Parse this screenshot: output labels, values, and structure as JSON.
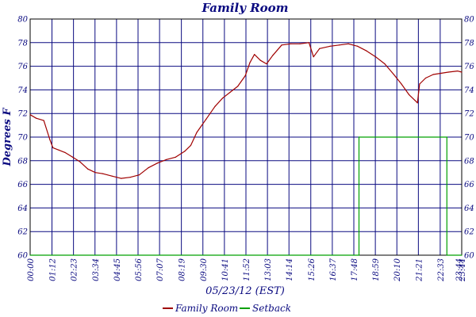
{
  "chart_data": {
    "type": "line",
    "title": "Family Room",
    "xlabel": "05/23/12 (EST)",
    "ylabel": "Degrees F",
    "ylim": [
      60,
      80
    ],
    "y_ticks": [
      60,
      62,
      64,
      66,
      68,
      70,
      72,
      74,
      76,
      78,
      80
    ],
    "x_range": [
      "00:00",
      "23:44"
    ],
    "x_tick_labels": [
      "00:00",
      "01:12",
      "02:23",
      "03:34",
      "04:45",
      "05:56",
      "07:07",
      "08:19",
      "09:30",
      "10:41",
      "11:52",
      "13:03",
      "14:14",
      "15:26",
      "16:37",
      "17:48",
      "18:59",
      "20:10",
      "21:21",
      "22:33",
      "23:44",
      "23:44"
    ],
    "grid": true,
    "legend_position": "bottom",
    "series": [
      {
        "name": "Family Room",
        "color": "#a00000",
        "x": [
          "00:00",
          "00:20",
          "00:45",
          "01:05",
          "01:15",
          "01:35",
          "01:55",
          "02:20",
          "02:45",
          "03:10",
          "03:35",
          "04:00",
          "04:30",
          "05:00",
          "05:30",
          "06:00",
          "06:30",
          "07:00",
          "07:30",
          "08:00",
          "08:30",
          "08:50",
          "09:10",
          "09:40",
          "10:10",
          "10:35",
          "11:00",
          "11:25",
          "11:50",
          "12:05",
          "12:20",
          "12:40",
          "13:00",
          "13:20",
          "13:50",
          "14:20",
          "14:50",
          "15:20",
          "15:35",
          "15:55",
          "16:30",
          "17:00",
          "17:30",
          "18:00",
          "18:30",
          "19:00",
          "19:30",
          "20:00",
          "20:25",
          "20:50",
          "21:10",
          "21:18",
          "21:25",
          "21:45",
          "22:10",
          "22:35",
          "23:00",
          "23:30",
          "23:44"
        ],
        "values": [
          71.9,
          71.6,
          71.4,
          69.8,
          69.1,
          68.9,
          68.7,
          68.3,
          67.9,
          67.3,
          67.0,
          66.9,
          66.7,
          66.5,
          66.6,
          66.8,
          67.4,
          67.8,
          68.1,
          68.3,
          68.8,
          69.3,
          70.4,
          71.5,
          72.6,
          73.3,
          73.8,
          74.3,
          75.2,
          76.3,
          77.0,
          76.5,
          76.2,
          76.9,
          77.8,
          77.9,
          77.9,
          78.0,
          76.8,
          77.5,
          77.7,
          77.8,
          77.9,
          77.7,
          77.3,
          76.8,
          76.2,
          75.3,
          74.5,
          73.6,
          73.1,
          72.9,
          74.5,
          75.0,
          75.3,
          75.4,
          75.5,
          75.6,
          75.5
        ]
      },
      {
        "name": "Setback",
        "color": "#00a000",
        "x": [
          "00:00",
          "18:05",
          "18:05",
          "22:55",
          "22:55",
          "23:44"
        ],
        "values": [
          60,
          60,
          70,
          70,
          60,
          60
        ]
      }
    ]
  }
}
